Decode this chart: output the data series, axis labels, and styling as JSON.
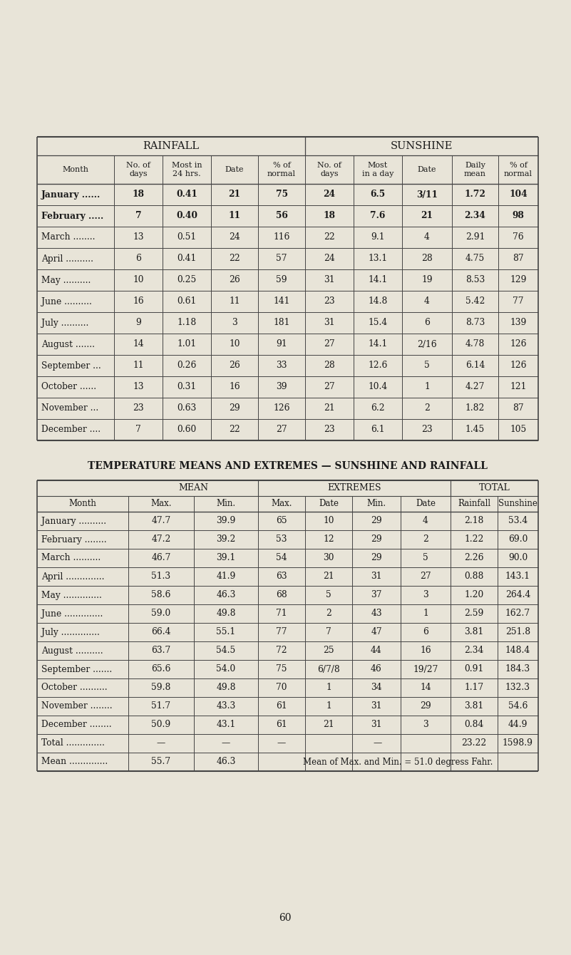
{
  "bg_color": "#e8e4d8",
  "text_color": "#1a1a1a",
  "page_number": "60",
  "table1_title": "RAINFALL",
  "table1_title2": "SUNSHINE",
  "table1_data": [
    [
      "January ......",
      "18",
      "0.41",
      "21",
      "75",
      "24",
      "6.5",
      "3/11",
      "1.72",
      "104"
    ],
    [
      "February .....",
      "7",
      "0.40",
      "11",
      "56",
      "18",
      "7.6",
      "21",
      "2.34",
      "98"
    ],
    [
      "March ........",
      "13",
      "0.51",
      "24",
      "116",
      "22",
      "9.1",
      "4",
      "2.91",
      "76"
    ],
    [
      "April ..........",
      "6",
      "0.41",
      "22",
      "57",
      "24",
      "13.1",
      "28",
      "4.75",
      "87"
    ],
    [
      "May ..........",
      "10",
      "0.25",
      "26",
      "59",
      "31",
      "14.1",
      "19",
      "8.53",
      "129"
    ],
    [
      "June ..........",
      "16",
      "0.61",
      "11",
      "141",
      "23",
      "14.8",
      "4",
      "5.42",
      "77"
    ],
    [
      "July ..........",
      "9",
      "1.18",
      "3",
      "181",
      "31",
      "15.4",
      "6",
      "8.73",
      "139"
    ],
    [
      "August .......",
      "14",
      "1.01",
      "10",
      "91",
      "27",
      "14.1",
      "2/16",
      "4.78",
      "126"
    ],
    [
      "September ...",
      "11",
      "0.26",
      "26",
      "33",
      "28",
      "12.6",
      "5",
      "6.14",
      "126"
    ],
    [
      "October ......",
      "13",
      "0.31",
      "16",
      "39",
      "27",
      "10.4",
      "1",
      "4.27",
      "121"
    ],
    [
      "November ...",
      "23",
      "0.63",
      "29",
      "126",
      "21",
      "6.2",
      "2",
      "1.82",
      "87"
    ],
    [
      "December ....",
      "7",
      "0.60",
      "22",
      "27",
      "23",
      "6.1",
      "23",
      "1.45",
      "105"
    ]
  ],
  "table2_title": "TEMPERATURE MEANS AND EXTREMES — SUNSHINE AND RAINFALL",
  "table2_data": [
    [
      "January ..........",
      "47.7",
      "39.9",
      "65",
      "10",
      "29",
      "4",
      "2.18",
      "53.4"
    ],
    [
      "February ........",
      "47.2",
      "39.2",
      "53",
      "12",
      "29",
      "2",
      "1.22",
      "69.0"
    ],
    [
      "March ..........",
      "46.7",
      "39.1",
      "54",
      "30",
      "29",
      "5",
      "2.26",
      "90.0"
    ],
    [
      "April ..............",
      "51.3",
      "41.9",
      "63",
      "21",
      "31",
      "27",
      "0.88",
      "143.1"
    ],
    [
      "May ..............",
      "58.6",
      "46.3",
      "68",
      "5",
      "37",
      "3",
      "1.20",
      "264.4"
    ],
    [
      "June ..............",
      "59.0",
      "49.8",
      "71",
      "2",
      "43",
      "1",
      "2.59",
      "162.7"
    ],
    [
      "July ..............",
      "66.4",
      "55.1",
      "77",
      "7",
      "47",
      "6",
      "3.81",
      "251.8"
    ],
    [
      "August ..........",
      "63.7",
      "54.5",
      "72",
      "25",
      "44",
      "16",
      "2.34",
      "148.4"
    ],
    [
      "September .......",
      "65.6",
      "54.0",
      "75",
      "6/7/8",
      "46",
      "19/27",
      "0.91",
      "184.3"
    ],
    [
      "October ..........",
      "59.8",
      "49.8",
      "70",
      "1",
      "34",
      "14",
      "1.17",
      "132.3"
    ],
    [
      "November ........",
      "51.7",
      "43.3",
      "61",
      "1",
      "31",
      "29",
      "3.81",
      "54.6"
    ],
    [
      "December ........",
      "50.9",
      "43.1",
      "61",
      "21",
      "31",
      "3",
      "0.84",
      "44.9"
    ],
    [
      "Total ..............",
      "—",
      "—",
      "—",
      "",
      "—",
      "",
      "23.22",
      "1598.9"
    ],
    [
      "Mean ..............",
      "55.7",
      "46.3",
      "Mean of Max. and Min. = 51.0 degress Fahr.",
      "",
      "",
      "",
      "",
      "",
      ""
    ]
  ]
}
